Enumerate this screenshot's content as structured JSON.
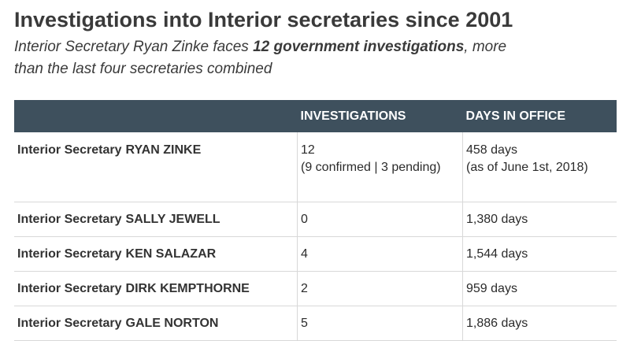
{
  "header": {
    "title": "Investigations into Interior secretaries since 2001",
    "subtitle": {
      "before": "Interior Secretary Ryan Zinke faces",
      "emphasis": "12 government investigations",
      "after": ", more than the last four secretaries combined"
    }
  },
  "table": {
    "columns": [
      "INVESTIGATIONS",
      "DAYS IN OFFICE"
    ],
    "rows": [
      {
        "prefix": "Interior Secretary",
        "name": "RYAN ZINKE",
        "investigations": "12",
        "investigations_note": "(9 confirmed | 3 pending)",
        "days": "458 days",
        "days_note": "(as of June 1st, 2018)"
      },
      {
        "prefix": "Interior Secretary",
        "name": "SALLY JEWELL",
        "investigations": "0",
        "days": "1,380 days"
      },
      {
        "prefix": "Interior Secretary",
        "name": "KEN SALAZAR",
        "investigations": "4",
        "days": "1,544 days"
      },
      {
        "prefix": "Interior Secretary",
        "name": "DIRK KEMPTHORNE",
        "investigations": "2",
        "days": "959 days"
      },
      {
        "prefix": "Interior Secretary",
        "name": "GALE NORTON",
        "investigations": "5",
        "days": "1,886 days"
      }
    ]
  }
}
